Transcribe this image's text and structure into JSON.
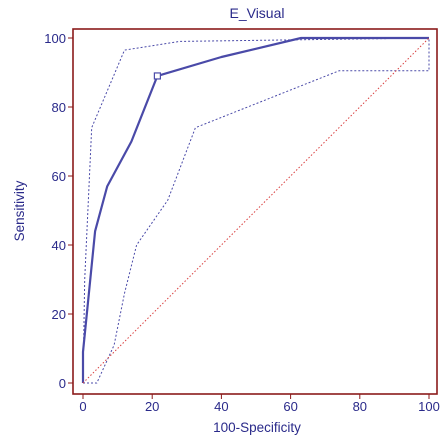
{
  "chart_data": {
    "type": "line",
    "title": "E_Visual",
    "xlabel": "100-Specificity",
    "ylabel": "Sensitivity",
    "xlim": [
      0,
      100
    ],
    "ylim": [
      0,
      100
    ],
    "x_ticks": [
      "0",
      "20",
      "40",
      "60",
      "80",
      "100"
    ],
    "y_ticks": [
      "0",
      "20",
      "40",
      "60",
      "80",
      "100"
    ],
    "grid": false,
    "legend": "none",
    "colors": {
      "roc": "#4a4aa8",
      "confidence_band": "#4a4aa8",
      "reference": "#d94040",
      "axis": "#8b1a1a",
      "text": "#2a2a8a"
    },
    "series": [
      {
        "style": "solid",
        "x": [
          0,
          0,
          1.5,
          3.5,
          7,
          14,
          21.5,
          40,
          63,
          100
        ],
        "y": [
          0,
          9,
          24,
          44,
          57,
          70,
          89,
          94.5,
          100,
          100
        ]
      },
      {
        "style": "dotted",
        "x": [
          0,
          0.5,
          2.5,
          12,
          28,
          100
        ],
        "y": [
          0,
          30,
          74,
          96.5,
          99,
          100
        ]
      },
      {
        "style": "dotted",
        "x": [
          0,
          4,
          9,
          12,
          15.5,
          24.5,
          32.5,
          74,
          100,
          100
        ],
        "y": [
          0,
          0,
          11,
          26,
          40,
          53,
          74,
          90.5,
          90.5,
          100
        ]
      },
      {
        "style": "diagonal",
        "x": [
          0,
          100
        ],
        "y": [
          0,
          100
        ]
      }
    ],
    "markers": [
      {
        "x": 21.5,
        "y": 89
      }
    ]
  }
}
